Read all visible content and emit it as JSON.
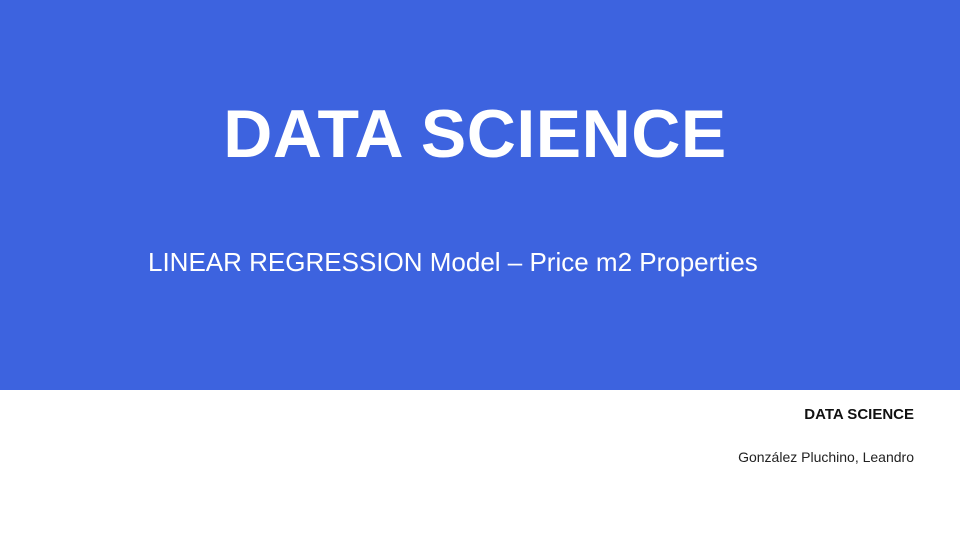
{
  "slide": {
    "title": "DATA SCIENCE",
    "subtitle": "LINEAR REGRESSION Model – Price m2 Properties",
    "footer": {
      "course": "DATA SCIENCE",
      "author": "González Pluchino, Leandro"
    }
  },
  "colors": {
    "banner": "#3D63DF",
    "banner_text": "#FFFFFF",
    "footer_text": "#111111",
    "background": "#FFFFFF"
  }
}
